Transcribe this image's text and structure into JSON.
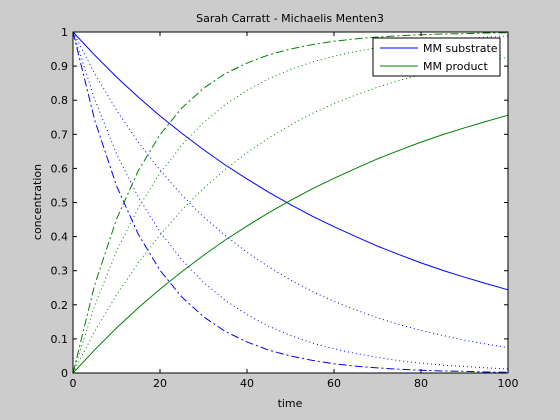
{
  "chart_data": {
    "type": "line",
    "title": "Sarah Carratt - Michaelis Menten3",
    "xlabel": "time",
    "ylabel": "concentration",
    "xlim": [
      0,
      100
    ],
    "ylim": [
      0,
      1
    ],
    "xticks": [
      "0",
      "20",
      "40",
      "60",
      "80",
      "100"
    ],
    "yticks": [
      "0",
      "0.1",
      "0.2",
      "0.3",
      "0.4",
      "0.5",
      "0.6",
      "0.7",
      "0.8",
      "0.9",
      "1"
    ],
    "grid": false,
    "legend_position": "top-right",
    "legend": [
      {
        "label": "MM substrate",
        "color": "#0000ff"
      },
      {
        "label": "MM product",
        "color": "#008000"
      }
    ],
    "x": [
      0,
      5,
      10,
      15,
      20,
      25,
      30,
      35,
      40,
      45,
      50,
      55,
      60,
      65,
      70,
      75,
      80,
      85,
      90,
      95,
      100
    ],
    "series": [
      {
        "label": "MM substrate",
        "color": "#0000ff",
        "dash": "solid",
        "values": [
          1.0,
          0.932,
          0.868,
          0.809,
          0.754,
          0.703,
          0.655,
          0.61,
          0.569,
          0.53,
          0.494,
          0.46,
          0.429,
          0.4,
          0.372,
          0.347,
          0.323,
          0.301,
          0.281,
          0.262,
          0.244
        ]
      },
      {
        "label": "MM product",
        "color": "#008000",
        "dash": "solid",
        "values": [
          0.0,
          0.068,
          0.132,
          0.191,
          0.246,
          0.297,
          0.345,
          0.39,
          0.431,
          0.47,
          0.506,
          0.54,
          0.571,
          0.6,
          0.628,
          0.653,
          0.677,
          0.699,
          0.719,
          0.738,
          0.756
        ]
      },
      {
        "color": "#0000ff",
        "dash": "dotted",
        "values": [
          1.0,
          0.878,
          0.771,
          0.677,
          0.595,
          0.522,
          0.458,
          0.403,
          0.354,
          0.311,
          0.273,
          0.239,
          0.21,
          0.185,
          0.162,
          0.142,
          0.125,
          0.11,
          0.096,
          0.085,
          0.074
        ]
      },
      {
        "color": "#008000",
        "dash": "dotted",
        "values": [
          0.0,
          0.122,
          0.229,
          0.323,
          0.405,
          0.478,
          0.542,
          0.597,
          0.646,
          0.689,
          0.727,
          0.761,
          0.79,
          0.815,
          0.838,
          0.858,
          0.875,
          0.89,
          0.904,
          0.915,
          0.926
        ]
      },
      {
        "color": "#0000ff",
        "dash": "dotted",
        "values": [
          1.0,
          0.802,
          0.643,
          0.516,
          0.414,
          0.332,
          0.266,
          0.213,
          0.171,
          0.137,
          0.11,
          0.088,
          0.071,
          0.057,
          0.046,
          0.036,
          0.029,
          0.023,
          0.019,
          0.015,
          0.012
        ]
      },
      {
        "color": "#008000",
        "dash": "dotted",
        "values": [
          0.0,
          0.198,
          0.357,
          0.484,
          0.586,
          0.668,
          0.734,
          0.787,
          0.829,
          0.863,
          0.89,
          0.912,
          0.929,
          0.943,
          0.954,
          0.964,
          0.971,
          0.977,
          0.981,
          0.985,
          0.988
        ]
      },
      {
        "color": "#0000ff",
        "dash": "dashdot",
        "values": [
          1.0,
          0.741,
          0.549,
          0.407,
          0.301,
          0.223,
          0.165,
          0.122,
          0.091,
          0.067,
          0.05,
          0.037,
          0.027,
          0.02,
          0.015,
          0.011,
          0.008,
          0.006,
          0.005,
          0.003,
          0.002
        ]
      },
      {
        "color": "#008000",
        "dash": "dashdot",
        "values": [
          0.0,
          0.259,
          0.451,
          0.593,
          0.699,
          0.777,
          0.835,
          0.878,
          0.909,
          0.933,
          0.95,
          0.963,
          0.973,
          0.98,
          0.985,
          0.989,
          0.992,
          0.994,
          0.995,
          0.997,
          0.998
        ]
      }
    ]
  }
}
